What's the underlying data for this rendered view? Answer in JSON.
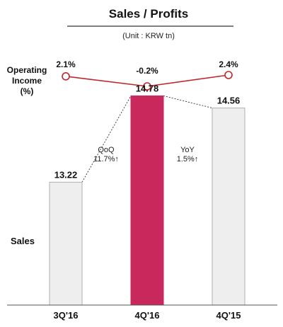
{
  "chart_data": {
    "title": "Sales / Profits",
    "subtitle": "(Unit : KRW tn)",
    "categories": [
      "3Q'16",
      "4Q'16",
      "4Q'15"
    ],
    "line_chart": {
      "type": "line",
      "label": "Operating Income (%)",
      "values": [
        2.1,
        -0.2,
        2.4
      ],
      "value_labels": [
        "2.1%",
        "-0.2%",
        "2.4%"
      ],
      "color": "#c0272d"
    },
    "bar_chart": {
      "type": "bar",
      "label": "Sales",
      "values": [
        13.22,
        14.78,
        14.56
      ],
      "value_labels": [
        "13.22",
        "14.78",
        "14.56"
      ],
      "highlight_index": 1,
      "highlight_color": "#c8285c",
      "bar_color": "#eeeeee"
    },
    "annotations": [
      {
        "label": "QoQ",
        "value": "11.7%↑"
      },
      {
        "label": "YoY",
        "value": "1.5%↑"
      }
    ]
  }
}
